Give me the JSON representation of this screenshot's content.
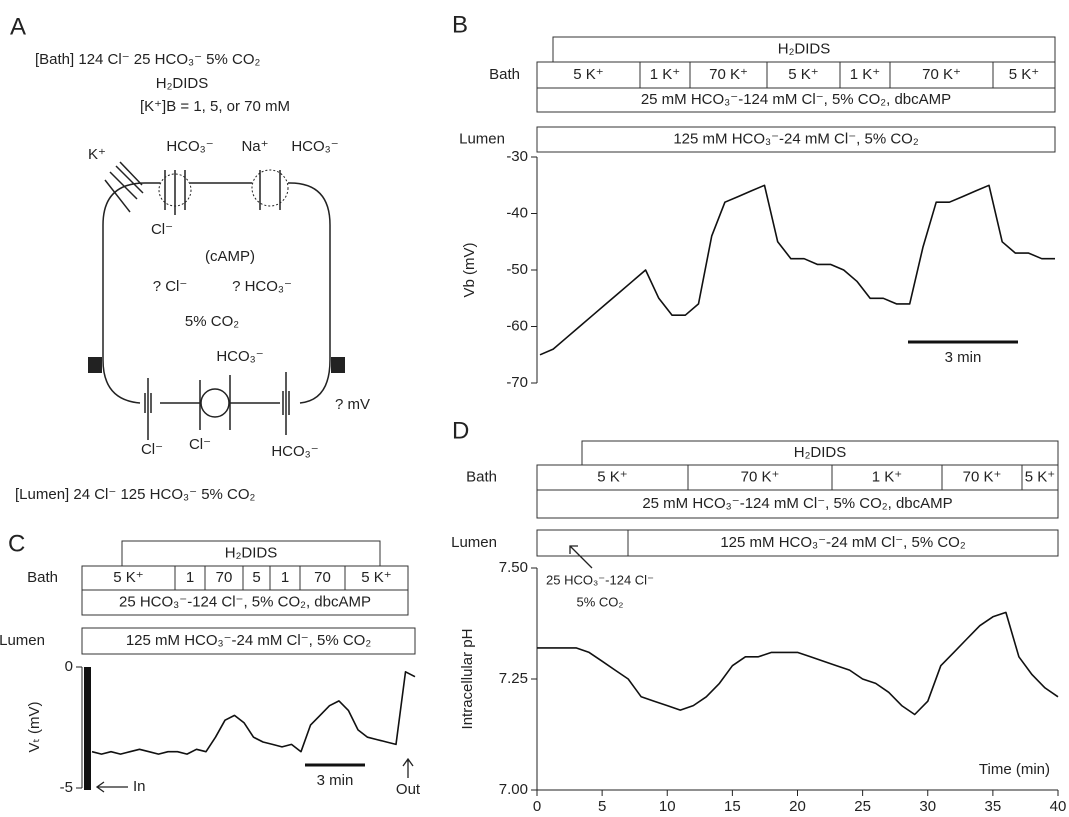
{
  "panel_labels": [
    "A",
    "B",
    "C",
    "D"
  ],
  "diagram": {
    "bath": "[Bath]  124 Cl⁻  25 HCO₃⁻   5% CO₂",
    "drug": "H₂DIDS",
    "k_conc": "[K⁺]B = 1, 5, or 70 mM",
    "labels": [
      "K⁺",
      "HCO₃⁻",
      "Na⁺",
      "HCO₃⁻",
      "Cl⁻",
      "(cAMP)",
      "? Cl⁻",
      "? HCO₃⁻",
      "5% CO₂",
      "HCO₃⁻",
      "Cl⁻",
      "Cl⁻",
      "HCO₃⁻",
      "? mV"
    ],
    "lumen": "[Lumen]  24 Cl⁻   125 HCO₃⁻  5% CO₂"
  },
  "chart_data": [
    {
      "type": "line",
      "ylabel": "Vb (mV)",
      "ylim": [
        -70,
        -30
      ],
      "yticks": [
        -30,
        -40,
        -50,
        -60,
        -70
      ],
      "color": "#111",
      "values": [
        -65,
        -64,
        -62,
        -60,
        -58,
        -56,
        -54,
        -52,
        -50,
        -55,
        -58,
        -58,
        -56,
        -44,
        -38,
        -37,
        -36,
        -35,
        -45,
        -48,
        -48,
        -49,
        -49,
        -50,
        -52,
        -55,
        -55,
        -56,
        -56,
        -46,
        -38,
        -38,
        -37,
        -36,
        -35,
        -45,
        -47,
        -47,
        -48,
        -48
      ],
      "scale_bar": "3 min",
      "protocol": {
        "drug": "H₂DIDS",
        "bath": "Bath",
        "segments": [
          "5 K⁺",
          "1 K⁺",
          "70 K⁺",
          "5 K⁺",
          "1 K⁺",
          "70 K⁺",
          "5 K⁺"
        ],
        "bath_solution": "25 mM HCO₃⁻-124 mM Cl⁻, 5% CO₂, dbcAMP",
        "lumen": "Lumen",
        "lumen_solution": "125 mM HCO₃⁻-24 mM Cl⁻, 5% CO₂"
      }
    },
    {
      "type": "line",
      "ylabel": "Vₜ (mV)",
      "ylim": [
        -5,
        0
      ],
      "yticks": [
        0,
        -5
      ],
      "color": "#111",
      "values": [
        -3.5,
        -3.6,
        -3.5,
        -3.6,
        -3.5,
        -3.4,
        -3.5,
        -3.6,
        -3.5,
        -3.5,
        -3.6,
        -3.4,
        -3.5,
        -2.9,
        -2.2,
        -2.0,
        -2.3,
        -2.9,
        -3.1,
        -3.2,
        -3.3,
        -3.2,
        -3.5,
        -2.4,
        -2.0,
        -1.6,
        -1.4,
        -1.8,
        -2.6,
        -2.9,
        -3.0,
        -3.1,
        -3.2,
        -0.2,
        -0.4
      ],
      "scale_bar": "3 min",
      "annotations": [
        "In",
        "Out"
      ],
      "protocol": {
        "drug": "H₂DIDS",
        "bath": "Bath",
        "segments": [
          "5 K⁺",
          "1",
          "70",
          "5",
          "1",
          "70",
          "5 K⁺"
        ],
        "bath_solution": "25 HCO₃⁻-124 Cl⁻, 5% CO₂, dbcAMP",
        "lumen": "Lumen",
        "lumen_solution": "125 mM HCO₃⁻-24 mM Cl⁻, 5% CO₂"
      }
    },
    {
      "type": "line",
      "ylabel": "Intracellular pH",
      "xlabel": "Time (min)",
      "xlim": [
        0,
        40
      ],
      "xticks": [
        0,
        5,
        10,
        15,
        20,
        25,
        30,
        35,
        40
      ],
      "ylim": [
        7.0,
        7.5
      ],
      "yticks": [
        {
          "value": 7.5,
          "label": "7.50"
        },
        {
          "value": 7.25,
          "label": "7.25"
        },
        {
          "value": 7.0,
          "label": "7.00"
        }
      ],
      "color": "#111",
      "x": [
        0,
        1,
        2,
        3,
        4,
        5,
        6,
        7,
        8,
        9,
        10,
        11,
        12,
        13,
        14,
        15,
        16,
        17,
        18,
        19,
        20,
        21,
        22,
        23,
        24,
        25,
        26,
        27,
        28,
        29,
        30,
        31,
        32,
        33,
        34,
        35,
        36,
        37,
        38,
        39,
        40
      ],
      "values": [
        7.32,
        7.32,
        7.32,
        7.32,
        7.31,
        7.29,
        7.27,
        7.25,
        7.21,
        7.2,
        7.19,
        7.18,
        7.19,
        7.21,
        7.24,
        7.28,
        7.3,
        7.3,
        7.31,
        7.31,
        7.31,
        7.3,
        7.29,
        7.28,
        7.27,
        7.25,
        7.24,
        7.22,
        7.19,
        7.17,
        7.2,
        7.28,
        7.31,
        7.34,
        7.37,
        7.39,
        7.4,
        7.3,
        7.26,
        7.23,
        7.21
      ],
      "annotations": [
        "25 HCO₃⁻-124 Cl⁻",
        "5% CO₂"
      ],
      "protocol": {
        "drug": "H₂DIDS",
        "bath": "Bath",
        "segments": [
          "5 K⁺",
          "70 K⁺",
          "1 K⁺",
          "70 K⁺",
          "5 K⁺"
        ],
        "bath_solution": "25 mM HCO₃⁻-124 mM Cl⁻, 5% CO₂, dbcAMP",
        "lumen": "Lumen",
        "lumen_solution": "125 mM HCO₃⁻-24 mM Cl⁻, 5% CO₂"
      }
    }
  ]
}
